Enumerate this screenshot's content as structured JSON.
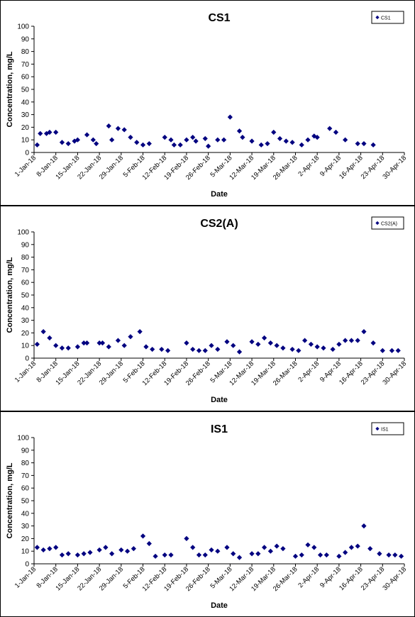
{
  "chart_data": [
    {
      "type": "scatter",
      "title": "CS1",
      "xlabel": "Date",
      "ylabel": "Concentration, mg/L",
      "ylim": [
        0,
        100
      ],
      "yticks": [
        0,
        10,
        20,
        30,
        40,
        50,
        60,
        70,
        80,
        90,
        100
      ],
      "xlim": [
        "2018-01-01",
        "2018-04-30"
      ],
      "xticks": [
        "1-Jan-18",
        "8-Jan-18",
        "15-Jan-18",
        "22-Jan-18",
        "29-Jan-18",
        "5-Feb-18",
        "12-Feb-18",
        "19-Feb-18",
        "26-Feb-18",
        "5-Mar-18",
        "12-Mar-18",
        "19-Mar-18",
        "26-Mar-18",
        "2-Apr-18",
        "9-Apr-18",
        "16-Apr-18",
        "23-Apr-18",
        "30-Apr-18"
      ],
      "legend": "top-right",
      "grid": false,
      "marker": "diamond",
      "color": "#000080",
      "series": [
        {
          "name": "CS1",
          "points": [
            [
              "2018-01-02",
              6
            ],
            [
              "2018-01-03",
              15
            ],
            [
              "2018-01-05",
              15
            ],
            [
              "2018-01-06",
              16
            ],
            [
              "2018-01-08",
              16
            ],
            [
              "2018-01-10",
              8
            ],
            [
              "2018-01-12",
              7
            ],
            [
              "2018-01-14",
              9
            ],
            [
              "2018-01-15",
              10
            ],
            [
              "2018-01-18",
              14
            ],
            [
              "2018-01-20",
              10
            ],
            [
              "2018-01-21",
              7
            ],
            [
              "2018-01-25",
              21
            ],
            [
              "2018-01-26",
              10
            ],
            [
              "2018-01-28",
              19
            ],
            [
              "2018-01-30",
              18
            ],
            [
              "2018-02-01",
              12
            ],
            [
              "2018-02-03",
              8
            ],
            [
              "2018-02-05",
              6
            ],
            [
              "2018-02-07",
              7
            ],
            [
              "2018-02-12",
              12
            ],
            [
              "2018-02-14",
              10
            ],
            [
              "2018-02-15",
              6
            ],
            [
              "2018-02-17",
              6
            ],
            [
              "2018-02-19",
              10
            ],
            [
              "2018-02-21",
              12
            ],
            [
              "2018-02-22",
              9
            ],
            [
              "2018-02-25",
              11
            ],
            [
              "2018-02-26",
              5
            ],
            [
              "2018-03-01",
              10
            ],
            [
              "2018-03-03",
              10
            ],
            [
              "2018-03-05",
              28
            ],
            [
              "2018-03-08",
              17
            ],
            [
              "2018-03-09",
              12
            ],
            [
              "2018-03-12",
              9
            ],
            [
              "2018-03-15",
              6
            ],
            [
              "2018-03-17",
              7
            ],
            [
              "2018-03-19",
              16
            ],
            [
              "2018-03-21",
              11
            ],
            [
              "2018-03-23",
              9
            ],
            [
              "2018-03-25",
              8
            ],
            [
              "2018-03-28",
              6
            ],
            [
              "2018-03-30",
              10
            ],
            [
              "2018-04-01",
              13
            ],
            [
              "2018-04-02",
              12
            ],
            [
              "2018-04-06",
              19
            ],
            [
              "2018-04-08",
              16
            ],
            [
              "2018-04-11",
              10
            ],
            [
              "2018-04-15",
              7
            ],
            [
              "2018-04-17",
              7
            ],
            [
              "2018-04-20",
              6
            ]
          ]
        }
      ]
    },
    {
      "type": "scatter",
      "title": "CS2(A)",
      "xlabel": "Date",
      "ylabel": "Concentration, mg/L",
      "ylim": [
        0,
        100
      ],
      "yticks": [
        0,
        10,
        20,
        30,
        40,
        50,
        60,
        70,
        80,
        90,
        100
      ],
      "xlim": [
        "2018-01-01",
        "2018-04-30"
      ],
      "xticks": [
        "1-Jan-18",
        "8-Jan-18",
        "15-Jan-18",
        "22-Jan-18",
        "29-Jan-18",
        "5-Feb-18",
        "12-Feb-18",
        "19-Feb-18",
        "26-Feb-18",
        "5-Mar-18",
        "12-Mar-18",
        "19-Mar-18",
        "26-Mar-18",
        "2-Apr-18",
        "9-Apr-18",
        "16-Apr-18",
        "23-Apr-18",
        "30-Apr-18"
      ],
      "legend": "top-right",
      "grid": false,
      "marker": "diamond",
      "color": "#000080",
      "series": [
        {
          "name": "CS2(A)",
          "points": [
            [
              "2018-01-02",
              11
            ],
            [
              "2018-01-04",
              21
            ],
            [
              "2018-01-06",
              16
            ],
            [
              "2018-01-08",
              10
            ],
            [
              "2018-01-10",
              8
            ],
            [
              "2018-01-12",
              8
            ],
            [
              "2018-01-15",
              9
            ],
            [
              "2018-01-17",
              12
            ],
            [
              "2018-01-18",
              12
            ],
            [
              "2018-01-22",
              12
            ],
            [
              "2018-01-23",
              12
            ],
            [
              "2018-01-25",
              9
            ],
            [
              "2018-01-28",
              14
            ],
            [
              "2018-01-30",
              10
            ],
            [
              "2018-02-01",
              17
            ],
            [
              "2018-02-04",
              21
            ],
            [
              "2018-02-06",
              9
            ],
            [
              "2018-02-08",
              7
            ],
            [
              "2018-02-11",
              7
            ],
            [
              "2018-02-13",
              6
            ],
            [
              "2018-02-19",
              12
            ],
            [
              "2018-02-21",
              7
            ],
            [
              "2018-02-23",
              6
            ],
            [
              "2018-02-25",
              6
            ],
            [
              "2018-02-27",
              10
            ],
            [
              "2018-03-01",
              7
            ],
            [
              "2018-03-04",
              13
            ],
            [
              "2018-03-06",
              10
            ],
            [
              "2018-03-08",
              5
            ],
            [
              "2018-03-12",
              13
            ],
            [
              "2018-03-14",
              11
            ],
            [
              "2018-03-16",
              16
            ],
            [
              "2018-03-18",
              12
            ],
            [
              "2018-03-20",
              10
            ],
            [
              "2018-03-22",
              8
            ],
            [
              "2018-03-25",
              7
            ],
            [
              "2018-03-27",
              6
            ],
            [
              "2018-03-29",
              14
            ],
            [
              "2018-03-31",
              11
            ],
            [
              "2018-04-02",
              9
            ],
            [
              "2018-04-04",
              8
            ],
            [
              "2018-04-07",
              7
            ],
            [
              "2018-04-09",
              11
            ],
            [
              "2018-04-11",
              14
            ],
            [
              "2018-04-13",
              14
            ],
            [
              "2018-04-15",
              14
            ],
            [
              "2018-04-17",
              21
            ],
            [
              "2018-04-20",
              12
            ],
            [
              "2018-04-23",
              6
            ],
            [
              "2018-04-26",
              6
            ],
            [
              "2018-04-28",
              6
            ]
          ]
        }
      ]
    },
    {
      "type": "scatter",
      "title": "IS1",
      "xlabel": "Date",
      "ylabel": "Concentration, mg/L",
      "ylim": [
        0,
        100
      ],
      "yticks": [
        0,
        10,
        20,
        30,
        40,
        50,
        60,
        70,
        80,
        90,
        100
      ],
      "xlim": [
        "2018-01-01",
        "2018-04-30"
      ],
      "xticks": [
        "1-Jan-18",
        "8-Jan-18",
        "15-Jan-18",
        "22-Jan-18",
        "29-Jan-18",
        "5-Feb-18",
        "12-Feb-18",
        "19-Feb-18",
        "26-Feb-18",
        "5-Mar-18",
        "12-Mar-18",
        "19-Mar-18",
        "26-Mar-18",
        "2-Apr-18",
        "9-Apr-18",
        "16-Apr-18",
        "23-Apr-18",
        "30-Apr-18"
      ],
      "legend": "top-right",
      "grid": false,
      "marker": "diamond",
      "color": "#000080",
      "series": [
        {
          "name": "IS1",
          "points": [
            [
              "2018-01-02",
              13
            ],
            [
              "2018-01-04",
              11
            ],
            [
              "2018-01-06",
              12
            ],
            [
              "2018-01-08",
              13
            ],
            [
              "2018-01-10",
              7
            ],
            [
              "2018-01-12",
              8
            ],
            [
              "2018-01-15",
              7
            ],
            [
              "2018-01-17",
              8
            ],
            [
              "2018-01-19",
              9
            ],
            [
              "2018-01-22",
              11
            ],
            [
              "2018-01-24",
              13
            ],
            [
              "2018-01-26",
              8
            ],
            [
              "2018-01-29",
              11
            ],
            [
              "2018-01-31",
              10
            ],
            [
              "2018-02-02",
              12
            ],
            [
              "2018-02-05",
              22
            ],
            [
              "2018-02-07",
              16
            ],
            [
              "2018-02-09",
              6
            ],
            [
              "2018-02-12",
              7
            ],
            [
              "2018-02-14",
              7
            ],
            [
              "2018-02-19",
              20
            ],
            [
              "2018-02-21",
              13
            ],
            [
              "2018-02-23",
              7
            ],
            [
              "2018-02-25",
              7
            ],
            [
              "2018-02-27",
              11
            ],
            [
              "2018-03-01",
              10
            ],
            [
              "2018-03-04",
              13
            ],
            [
              "2018-03-06",
              8
            ],
            [
              "2018-03-08",
              5
            ],
            [
              "2018-03-12",
              8
            ],
            [
              "2018-03-14",
              8
            ],
            [
              "2018-03-16",
              13
            ],
            [
              "2018-03-18",
              10
            ],
            [
              "2018-03-20",
              14
            ],
            [
              "2018-03-22",
              12
            ],
            [
              "2018-03-26",
              6
            ],
            [
              "2018-03-28",
              7
            ],
            [
              "2018-03-30",
              15
            ],
            [
              "2018-04-01",
              13
            ],
            [
              "2018-04-03",
              7
            ],
            [
              "2018-04-05",
              7
            ],
            [
              "2018-04-09",
              6
            ],
            [
              "2018-04-11",
              9
            ],
            [
              "2018-04-13",
              13
            ],
            [
              "2018-04-15",
              14
            ],
            [
              "2018-04-17",
              30
            ],
            [
              "2018-04-19",
              12
            ],
            [
              "2018-04-22",
              8
            ],
            [
              "2018-04-25",
              7
            ],
            [
              "2018-04-27",
              7
            ],
            [
              "2018-04-29",
              6
            ]
          ]
        }
      ]
    }
  ]
}
